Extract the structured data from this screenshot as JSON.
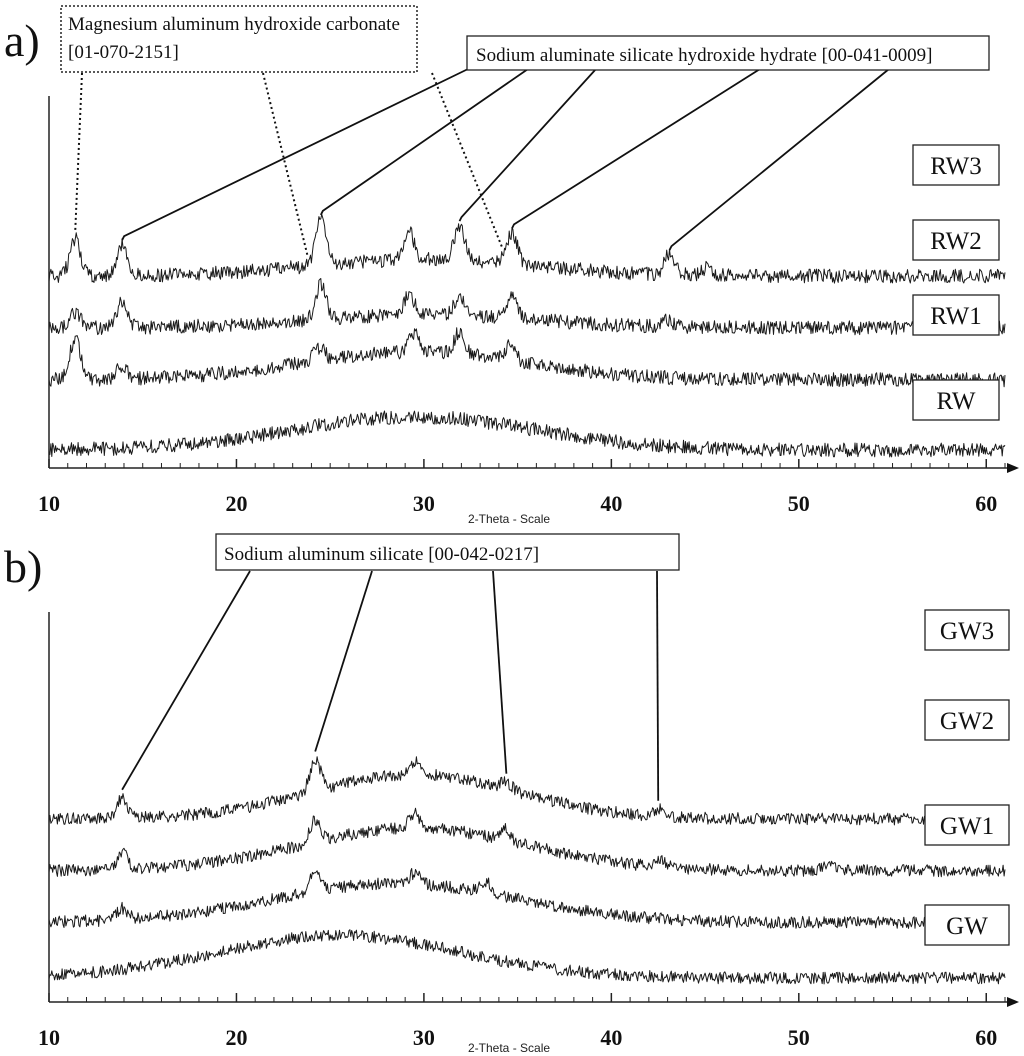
{
  "chart_data": [
    {
      "type": "line",
      "panel_label": "a)",
      "xlabel": "2-Theta - Scale",
      "xlim": [
        10,
        61
      ],
      "x_ticks": [
        10,
        20,
        30,
        40,
        50,
        60
      ],
      "y_axis_labels": false,
      "series": [
        {
          "name": "RW3",
          "baseline": 4.7,
          "peaks": [
            [
              11.4,
              1.0
            ],
            [
              13.9,
              0.85
            ],
            [
              24.5,
              1.25
            ],
            [
              29.2,
              0.75
            ],
            [
              31.9,
              0.95
            ],
            [
              34.7,
              0.85
            ],
            [
              43.1,
              0.55
            ],
            [
              45.1,
              0.2
            ]
          ],
          "hump": [
            30.0,
            6.0,
            0.45
          ]
        },
        {
          "name": "RW2",
          "baseline": 3.3,
          "peaks": [
            [
              11.4,
              0.4
            ],
            [
              13.9,
              0.7
            ],
            [
              24.5,
              0.95
            ],
            [
              29.2,
              0.55
            ],
            [
              31.9,
              0.55
            ],
            [
              34.7,
              0.65
            ],
            [
              42.9,
              0.2
            ]
          ],
          "hump": [
            30.0,
            6.0,
            0.35
          ]
        },
        {
          "name": "RW1",
          "baseline": 1.9,
          "peaks": [
            [
              11.4,
              1.1
            ],
            [
              13.9,
              0.35
            ],
            [
              24.4,
              0.35
            ],
            [
              29.5,
              0.5
            ],
            [
              31.9,
              0.6
            ],
            [
              34.6,
              0.4
            ]
          ],
          "hump": [
            29.5,
            6.0,
            0.75
          ]
        },
        {
          "name": "RW",
          "baseline": 0.0,
          "peaks": [],
          "hump": [
            29.5,
            6.5,
            0.9
          ]
        }
      ],
      "annotations": [
        {
          "line1": "Magnesium aluminum hydroxide carbonate",
          "line2": "[01-070-2151]",
          "style": "dotted",
          "points_to": [
            11.4,
            23.8,
            34.2
          ]
        },
        {
          "line1": "Sodium aluminate silicate hydroxide hydrate [00-041-0009]",
          "style": "solid",
          "points_to": [
            13.9,
            24.5,
            31.9,
            34.7,
            43.1
          ]
        }
      ]
    },
    {
      "type": "line",
      "panel_label": "b)",
      "xlabel": "2-Theta - Scale",
      "xlim": [
        10,
        61
      ],
      "x_ticks": [
        10,
        20,
        30,
        40,
        50,
        60
      ],
      "y_axis_labels": false,
      "series": [
        {
          "name": "GW3",
          "baseline": 4.3,
          "peaks": [
            [
              13.9,
              0.55
            ],
            [
              24.2,
              0.85
            ],
            [
              29.5,
              0.35
            ],
            [
              34.4,
              0.2
            ],
            [
              42.5,
              0.2
            ]
          ],
          "hump": [
            29.5,
            5.5,
            1.2
          ]
        },
        {
          "name": "GW2",
          "baseline": 2.9,
          "peaks": [
            [
              13.9,
              0.45
            ],
            [
              24.2,
              0.6
            ],
            [
              29.5,
              0.4
            ],
            [
              34.3,
              0.3
            ],
            [
              42.6,
              0.25
            ],
            [
              51.6,
              0.15
            ]
          ],
          "hump": [
            29.5,
            6.0,
            1.15
          ]
        },
        {
          "name": "GW1",
          "baseline": 1.5,
          "peaks": [
            [
              13.9,
              0.3
            ],
            [
              24.2,
              0.6
            ],
            [
              29.5,
              0.3
            ],
            [
              33.3,
              0.3
            ]
          ],
          "hump": [
            28.5,
            6.5,
            1.05
          ]
        },
        {
          "name": "GW",
          "baseline": 0.0,
          "peaks": [],
          "hump": [
            25.5,
            6.5,
            1.15
          ]
        }
      ],
      "annotations": [
        {
          "line1": "Sodium aluminum silicate [00-042-0217]",
          "style": "solid",
          "points_to": [
            13.9,
            24.2,
            34.4,
            42.5
          ]
        }
      ]
    }
  ]
}
